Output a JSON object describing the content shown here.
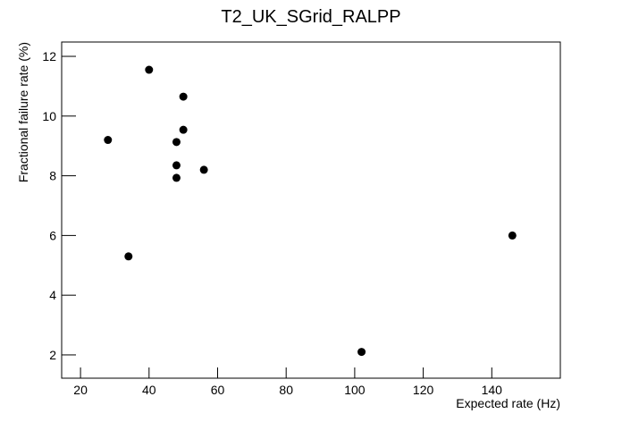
{
  "chart_data": {
    "type": "scatter",
    "title": "T2_UK_SGrid_RALPP",
    "x_label": "Expected rate (Hz)",
    "y_label": "Fractional failure rate (%)",
    "x": [
      28,
      34,
      40,
      50,
      50,
      48,
      48,
      48,
      56,
      102,
      146
    ],
    "values": [
      9.2,
      5.3,
      11.55,
      10.65,
      9.54,
      9.13,
      8.35,
      7.93,
      8.2,
      2.1,
      6.0
    ],
    "color": "#000000",
    "xlim": [
      14.5,
      160
    ],
    "ylim": [
      1.22,
      12.48
    ],
    "xticks": [
      20,
      40,
      60,
      80,
      100,
      120,
      140
    ],
    "yticks": [
      2,
      4,
      6,
      8,
      10,
      12
    ]
  }
}
